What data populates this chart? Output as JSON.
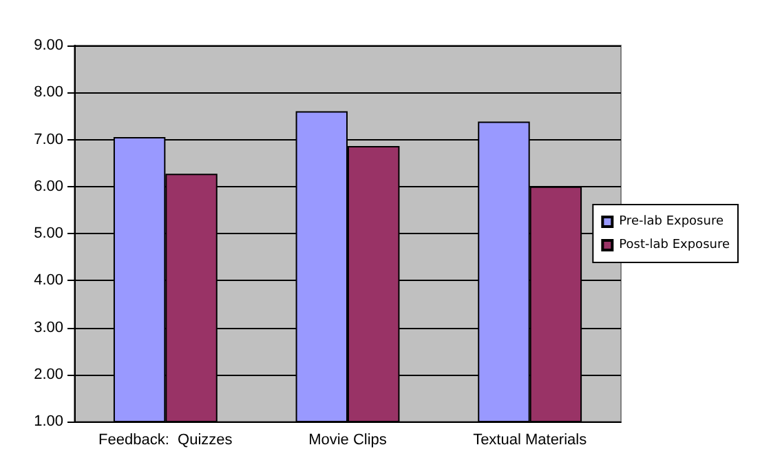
{
  "chart_data": {
    "type": "bar",
    "categories": [
      "Feedback:  Quizzes",
      "Movie Clips",
      "Textual Materials"
    ],
    "series": [
      {
        "name": "Pre-lab Exposure",
        "color": "#9999ff",
        "values": [
          7.05,
          7.6,
          7.38
        ]
      },
      {
        "name": "Post-lab Exposure",
        "color": "#993366",
        "values": [
          6.27,
          6.86,
          6.0
        ]
      }
    ],
    "ylim": [
      1,
      9
    ],
    "yticks": [
      {
        "value": 1,
        "label": "1.00"
      },
      {
        "value": 2,
        "label": "2.00"
      },
      {
        "value": 3,
        "label": "3.00"
      },
      {
        "value": 4,
        "label": "4.00"
      },
      {
        "value": 5,
        "label": "5.00"
      },
      {
        "value": 6,
        "label": "6.00"
      },
      {
        "value": 7,
        "label": "7.00"
      },
      {
        "value": 8,
        "label": "8.00"
      },
      {
        "value": 9,
        "label": "9.00"
      }
    ],
    "grid": "y",
    "legend": "right"
  }
}
